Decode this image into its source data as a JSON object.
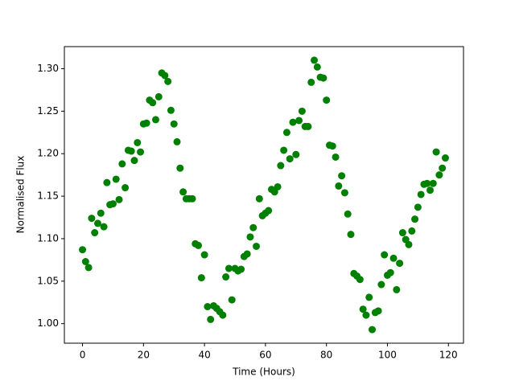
{
  "chart_data": {
    "type": "scatter",
    "xlabel": "Time (Hours)",
    "ylabel": "Normalised Flux",
    "color": "#008000",
    "x": [
      0,
      1,
      2,
      3,
      4,
      5,
      6,
      7,
      8,
      9,
      10,
      11,
      12,
      13,
      14,
      15,
      16,
      17,
      18,
      19,
      20,
      21,
      22,
      23,
      24,
      25,
      26,
      27,
      28,
      29,
      30,
      31,
      32,
      33,
      34,
      35,
      36,
      37,
      38,
      39,
      40,
      41,
      42,
      43,
      44,
      45,
      46,
      47,
      48,
      49,
      50,
      51,
      52,
      53,
      54,
      55,
      56,
      57,
      58,
      59,
      60,
      61,
      62,
      63,
      64,
      65,
      66,
      67,
      68,
      69,
      70,
      71,
      72,
      73,
      74,
      75,
      76,
      77,
      78,
      79,
      80,
      81,
      82,
      83,
      84,
      85,
      86,
      87,
      88,
      89,
      90,
      91,
      92,
      93,
      94,
      95,
      96,
      97,
      98,
      99,
      100,
      101,
      102,
      103,
      104,
      105,
      106,
      107,
      108,
      109,
      110,
      111,
      112,
      113,
      114,
      115,
      116,
      117,
      118,
      119
    ],
    "values": [
      1.087,
      1.073,
      1.066,
      1.124,
      1.107,
      1.118,
      1.13,
      1.114,
      1.166,
      1.14,
      1.141,
      1.17,
      1.146,
      1.188,
      1.16,
      1.204,
      1.203,
      1.192,
      1.213,
      1.202,
      1.235,
      1.236,
      1.263,
      1.26,
      1.24,
      1.267,
      1.295,
      1.292,
      1.285,
      1.251,
      1.235,
      1.214,
      1.183,
      1.155,
      1.147,
      1.147,
      1.147,
      1.094,
      1.092,
      1.054,
      1.081,
      1.02,
      1.005,
      1.021,
      1.018,
      1.014,
      1.01,
      1.055,
      1.065,
      1.028,
      1.065,
      1.062,
      1.064,
      1.079,
      1.082,
      1.102,
      1.113,
      1.091,
      1.147,
      1.127,
      1.13,
      1.133,
      1.158,
      1.155,
      1.161,
      1.186,
      1.204,
      1.225,
      1.194,
      1.237,
      1.199,
      1.239,
      1.25,
      1.232,
      1.232,
      1.284,
      1.31,
      1.302,
      1.29,
      1.289,
      1.263,
      1.21,
      1.209,
      1.196,
      1.162,
      1.174,
      1.154,
      1.129,
      1.105,
      1.059,
      1.056,
      1.052,
      1.017,
      1.01,
      1.031,
      0.993,
      1.013,
      1.015,
      1.046,
      1.081,
      1.057,
      1.06,
      1.077,
      1.04,
      1.071,
      1.107,
      1.099,
      1.093,
      1.109,
      1.123,
      1.137,
      1.152,
      1.164,
      1.165,
      1.157,
      1.165,
      1.202,
      1.175,
      1.183,
      1.195
    ],
    "xlim": [
      -5.95,
      124.95
    ],
    "xticks": [
      0,
      20,
      40,
      60,
      80,
      100,
      120
    ],
    "ylim": [
      0.977,
      1.326
    ],
    "yticks": [
      {
        "value": 1,
        "label": "1.00"
      },
      1.05,
      {
        "value": 1.1,
        "label": "1.10"
      },
      1.15,
      {
        "value": 1.2,
        "label": "1.20"
      },
      1.25,
      {
        "value": 1.3,
        "label": "1.30"
      }
    ]
  }
}
